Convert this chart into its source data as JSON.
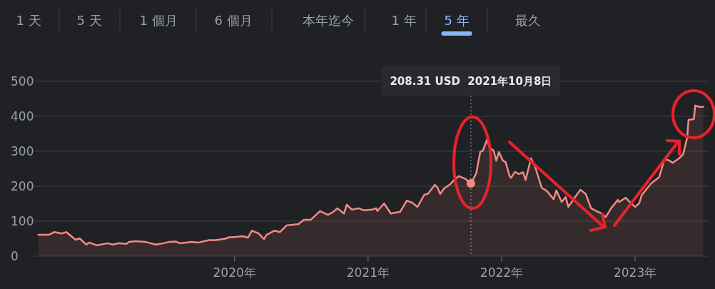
{
  "chart_data": {
    "type": "area",
    "color": "#f28b82",
    "annotations": [
      "1 天",
      "5 天",
      "1 個月",
      "6 個月",
      "本年迄今",
      "1 年",
      "5 年",
      "最久",
      "208.31 USD  2021年10月8日"
    ],
    "x": [
      2018.53,
      2018.61,
      2018.65,
      2018.71,
      2018.74,
      2018.81,
      2018.84,
      2018.89,
      2018.91,
      2018.97,
      2019.05,
      2019.09,
      2019.13,
      2019.19,
      2019.21,
      2019.26,
      2019.3,
      2019.33,
      2019.41,
      2019.47,
      2019.51,
      2019.56,
      2019.59,
      2019.68,
      2019.73,
      2019.81,
      2019.86,
      2019.93,
      2019.96,
      2020.01,
      2020.06,
      2020.1,
      2020.13,
      2020.18,
      2020.22,
      2020.24,
      2020.3,
      2020.34,
      2020.39,
      2020.48,
      2020.52,
      2020.57,
      2020.64,
      2020.7,
      2020.74,
      2020.77,
      2020.82,
      2020.84,
      2020.88,
      2020.93,
      2020.97,
      2021.03,
      2021.06,
      2021.07,
      2021.12,
      2021.17,
      2021.24,
      2021.29,
      2021.33,
      2021.37,
      2021.42,
      2021.45,
      2021.5,
      2021.52,
      2021.54,
      2021.57,
      2021.61,
      2021.65,
      2021.68,
      2021.73,
      2021.77,
      2021.81,
      2021.84,
      2021.86,
      2021.89,
      2021.91,
      2021.94,
      2021.96,
      2021.98,
      2022.01,
      2022.03,
      2022.06,
      2022.07,
      2022.1,
      2022.13,
      2022.16,
      2022.18,
      2022.22,
      2022.25,
      2022.3,
      2022.34,
      2022.39,
      2022.41,
      2022.45,
      2022.48,
      2022.5,
      2022.55,
      2022.59,
      2022.63,
      2022.67,
      2022.72,
      2022.75,
      2022.78,
      2022.82,
      2022.87,
      2022.88,
      2022.93,
      2022.96,
      2023.0,
      2023.03,
      2023.05,
      2023.12,
      2023.18,
      2023.22,
      2023.26,
      2023.28,
      2023.33,
      2023.36,
      2023.39,
      2023.4,
      2023.44,
      2023.45,
      2023.48,
      2023.51
    ],
    "values": [
      61,
      61,
      69,
      65,
      69,
      47,
      51,
      33,
      39,
      31,
      37,
      33,
      37,
      35,
      41,
      43,
      42,
      41,
      33,
      37,
      41,
      42,
      37,
      41,
      39,
      46,
      46,
      50,
      54,
      55,
      57,
      53,
      73,
      65,
      49,
      61,
      73,
      69,
      88,
      92,
      104,
      104,
      129,
      118,
      127,
      137,
      122,
      147,
      133,
      137,
      131,
      133,
      137,
      129,
      151,
      122,
      127,
      159,
      153,
      141,
      175,
      179,
      204,
      196,
      178,
      194,
      204,
      220,
      229,
      221,
      208,
      237,
      298,
      302,
      333,
      311,
      302,
      273,
      298,
      273,
      269,
      229,
      224,
      241,
      235,
      240,
      218,
      280,
      257,
      196,
      186,
      163,
      188,
      155,
      169,
      141,
      169,
      190,
      178,
      137,
      127,
      122,
      112,
      137,
      161,
      155,
      167,
      155,
      141,
      151,
      175,
      208,
      226,
      278,
      273,
      267,
      280,
      292,
      339,
      390,
      392,
      431,
      427,
      427
    ],
    "xlim": [
      2018.5,
      2023.55
    ],
    "ylim": [
      0,
      500
    ],
    "xticks": [
      {
        "value": 2020,
        "label": "2020年"
      },
      {
        "value": 2021,
        "label": "2021年"
      },
      {
        "value": 2022,
        "label": "2022年"
      },
      {
        "value": 2023,
        "label": "2023年"
      }
    ],
    "yticks": [
      0,
      100,
      200,
      300,
      400,
      500
    ],
    "grid": "y",
    "ref_lines": [
      {
        "axis": "x",
        "value": 2021.77,
        "color": "#9aa0a6",
        "line_style": "dotted"
      }
    ]
  }
}
